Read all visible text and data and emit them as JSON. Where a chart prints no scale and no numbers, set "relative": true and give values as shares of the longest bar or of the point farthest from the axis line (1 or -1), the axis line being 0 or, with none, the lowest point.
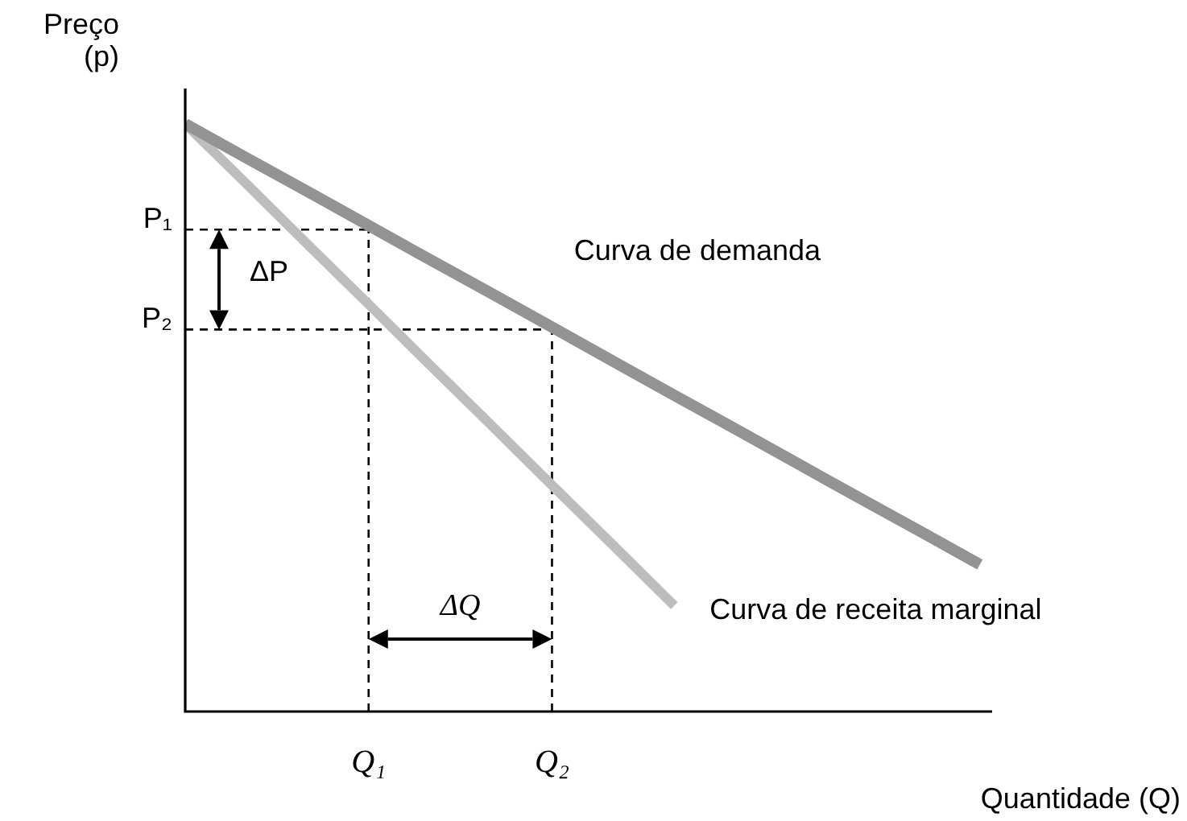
{
  "chart_data": {
    "type": "line",
    "relative": true,
    "ylabel": "Preço\n(p)",
    "xlabel": "Quantidade (Q)",
    "categories": [
      null,
      null,
      null,
      "Q₁",
      null,
      null,
      "Q₂",
      null,
      null,
      null,
      null,
      null,
      null,
      null
    ],
    "series": [
      {
        "name": "Curva de demanda",
        "color": "#939393",
        "values": [
          1,
          0.942,
          0.885,
          0.827,
          0.769,
          0.712,
          0.654,
          0.596,
          0.538,
          0.481,
          0.423,
          0.365,
          0.308,
          0.25
        ]
      },
      {
        "name": "Curva de receita marginal",
        "color": "#bdbdbd",
        "values": [
          1,
          0.898,
          0.795,
          0.693,
          0.59,
          0.488,
          0.385,
          0.283,
          0.18,
          null,
          null,
          null,
          null,
          null
        ]
      }
    ],
    "ref_lines": [
      {
        "axis": "y",
        "value": 0.82,
        "label": "P₁",
        "color": "#000000",
        "line_style": "dashed"
      },
      {
        "axis": "y",
        "value": 0.65,
        "label": "P₂",
        "color": "#000000",
        "line_style": "dashed"
      },
      {
        "axis": "x",
        "value": "Q₁",
        "color": "#000000",
        "line_style": "dashed"
      },
      {
        "axis": "x",
        "value": "Q₂",
        "color": "#000000",
        "line_style": "dashed"
      }
    ],
    "annotations": [
      "ΔP",
      "ΔQ"
    ],
    "legend": false,
    "marker": "none",
    "tick_labels": "x"
  }
}
